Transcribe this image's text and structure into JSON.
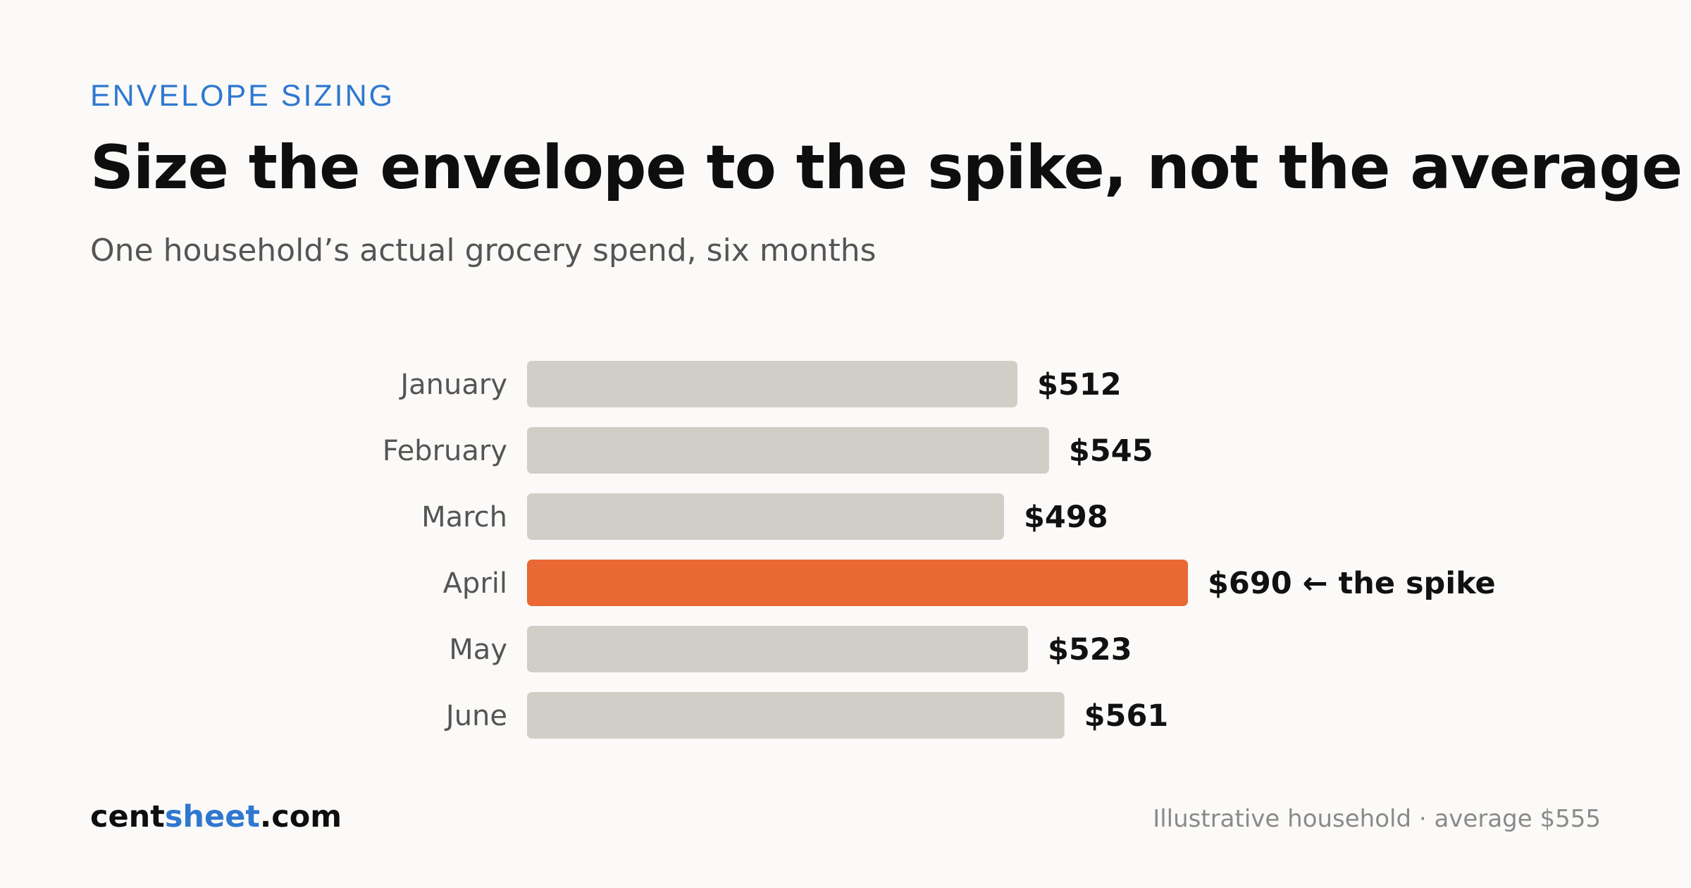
{
  "header": {
    "eyebrow": "ENVELOPE SIZING",
    "title": "Size the envelope to the spike, not the average",
    "subtitle": "One household’s actual grocery spend, six months"
  },
  "footer": {
    "brand_a": "cent",
    "brand_b": "sheet",
    "brand_c": ".com",
    "note": "Illustrative household · average $555"
  },
  "colors": {
    "bar": "#cfcec7",
    "highlight": "#e96834",
    "accent": "#2f78d0"
  },
  "chart_data": {
    "type": "bar",
    "orientation": "horizontal",
    "categories": [
      "January",
      "February",
      "March",
      "April",
      "May",
      "June"
    ],
    "values": [
      512,
      545,
      498,
      690,
      523,
      561
    ],
    "value_labels": [
      "$512",
      "$545",
      "$498",
      "$690 ← the spike",
      "$523",
      "$561"
    ],
    "highlight_index": 3,
    "xlim": [
      0,
      690
    ],
    "grid": false,
    "legend": "none"
  }
}
